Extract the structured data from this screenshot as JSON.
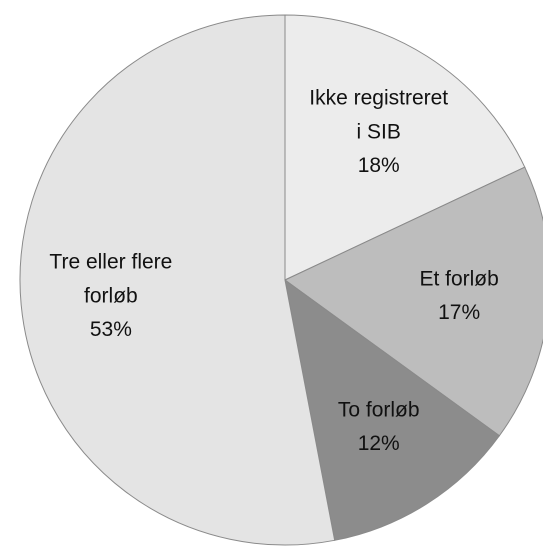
{
  "chart_data": {
    "type": "pie",
    "categories": [
      "Ikke registreret i SIB",
      "Et forløb",
      "To forløb",
      "Tre eller flere forløb"
    ],
    "values": [
      18,
      17,
      12,
      53
    ],
    "value_labels": [
      "18%",
      "17%",
      "12%",
      "53%"
    ],
    "colors": [
      "#ececec",
      "#bdbdbd",
      "#8c8c8c",
      "#e4e4e4"
    ]
  }
}
